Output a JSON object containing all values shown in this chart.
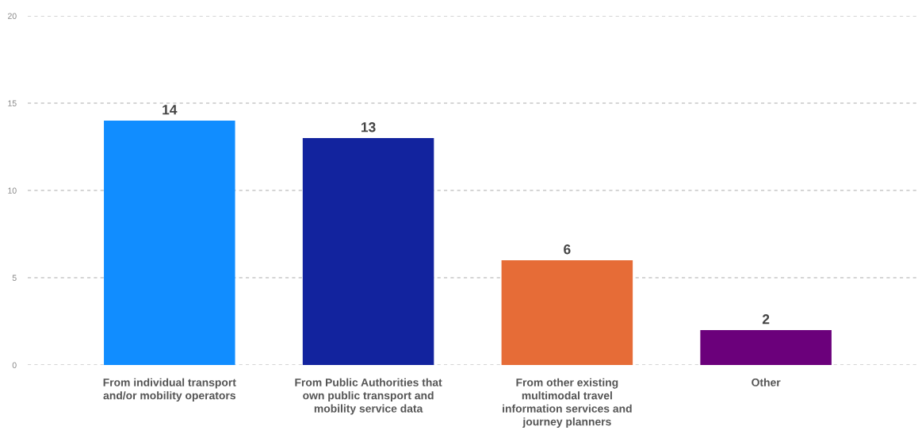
{
  "chart_data": {
    "type": "bar",
    "categories": [
      "From individual transport\nand/or mobility operators",
      "From Public Authorities that\nown public transport and\nmobility service data",
      "From other existing\nmultimodal travel\ninformation services and\njourney planners",
      "Other"
    ],
    "values": [
      14,
      13,
      6,
      2
    ],
    "colors": [
      "#118dff",
      "#12239e",
      "#e66c37",
      "#6b007b"
    ],
    "ylim": [
      0,
      20
    ],
    "yticks": [
      0,
      5,
      10,
      15,
      20
    ],
    "grid": "y",
    "data_labels": true
  }
}
